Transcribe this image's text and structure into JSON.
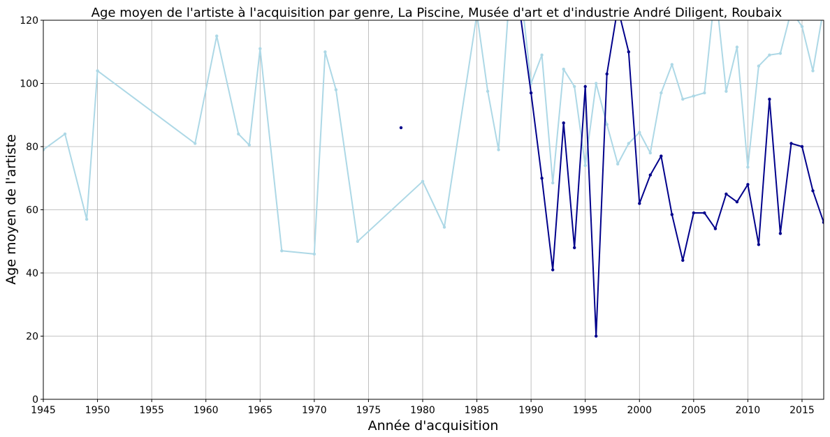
{
  "chart_data": {
    "type": "line",
    "title": "Age moyen de l'artiste à l'acquisition par genre, La Piscine, Musée d'art et d'industrie André Diligent, Roubaix",
    "xlabel": "Année d'acquisition",
    "ylabel": "Age moyen de l'artiste",
    "xlim": [
      1945,
      2017
    ],
    "ylim": [
      0,
      120
    ],
    "xticks": [
      "1945",
      "1950",
      "1955",
      "1960",
      "1965",
      "1970",
      "1975",
      "1980",
      "1985",
      "1990",
      "1995",
      "2000",
      "2005",
      "2010",
      "2015"
    ],
    "yticks": [
      "0",
      "20",
      "40",
      "60",
      "80",
      "100",
      "120"
    ],
    "grid": true,
    "series": [
      {
        "color": "#add8e6",
        "x": [
          1945,
          1947,
          1949,
          1950,
          1959,
          1961,
          1963,
          1964,
          1965,
          1967,
          1970,
          1971,
          1972,
          1974,
          1980,
          1982,
          1985,
          1986,
          1987,
          1988,
          1989,
          1990,
          1991,
          1992,
          1993,
          1994,
          1995,
          1996,
          1997,
          1998,
          1999,
          2000,
          2001,
          2002,
          2003,
          2004,
          2005,
          2006,
          2007,
          2008,
          2009,
          2010,
          2011,
          2012,
          2013,
          2014,
          2015,
          2016,
          2017
        ],
        "y": [
          79,
          84,
          57,
          104,
          81,
          115,
          84,
          80.5,
          111,
          47,
          46,
          110,
          98,
          50,
          69,
          54.5,
          122,
          97.5,
          79,
          128,
          131,
          100,
          109,
          68.5,
          104.5,
          99,
          74,
          100,
          87,
          74.5,
          81,
          84.5,
          78,
          97,
          106,
          95,
          96,
          97,
          130,
          97.5,
          111.5,
          73.5,
          105.5,
          109,
          109.5,
          123,
          118,
          104,
          124
        ]
      },
      {
        "color": "#00008b",
        "x": [
          1978,
          null,
          1989,
          1990,
          1991,
          1992,
          1993,
          1994,
          1995,
          1996,
          1997,
          1998,
          1999,
          2000,
          2001,
          2002,
          2003,
          2004,
          2005,
          2006,
          2007,
          2008,
          2009,
          2010,
          2011,
          2012,
          2013,
          2014,
          2015,
          2016,
          2017
        ],
        "y": [
          86,
          null,
          122,
          97,
          70,
          41,
          87.5,
          48,
          99,
          20,
          103,
          124,
          110,
          62,
          71,
          77,
          58.5,
          44,
          59,
          59,
          54,
          65,
          62.5,
          68,
          49,
          95,
          52.5,
          81,
          80,
          66,
          56
        ]
      }
    ]
  }
}
